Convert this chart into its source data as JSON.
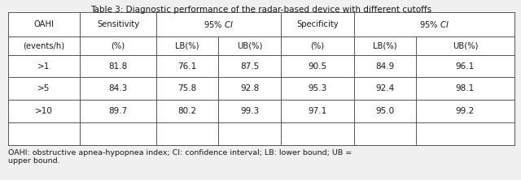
{
  "title": "Table 3: Diagnostic performance of the radar-based device with different cutoffs",
  "footnote": "OAHI: obstructive apnea-hypopnea index; CI: confidence interval; LB: lower bound; UB =\nupper bound.",
  "headers_row1": [
    "OAHI",
    "Sensitivity",
    "95% CI",
    "Specificity",
    "95% CI"
  ],
  "headers_row2": [
    "(events/h)",
    "(%)",
    "LB(%)",
    "UB(%)",
    "(%)",
    "LB(%)",
    "UB(%)"
  ],
  "data_rows": [
    [
      ">1",
      "81.8",
      "76.1",
      "87.5",
      "90.5",
      "84.9",
      "96.1"
    ],
    [
      ">5",
      "84.3",
      "75.8",
      "92.8",
      "95.3",
      "92.4",
      "98.1"
    ],
    [
      ">10",
      "89.7",
      "80.2",
      "99.3",
      "97.1",
      "95.0",
      "99.2"
    ]
  ],
  "background_color": "#f0f0f0",
  "table_bg": "#ffffff",
  "text_color": "#1a1a1a",
  "line_color": "#555555",
  "title_fontsize": 7.5,
  "header_fontsize": 7.2,
  "data_fontsize": 7.5,
  "footnote_fontsize": 6.8
}
